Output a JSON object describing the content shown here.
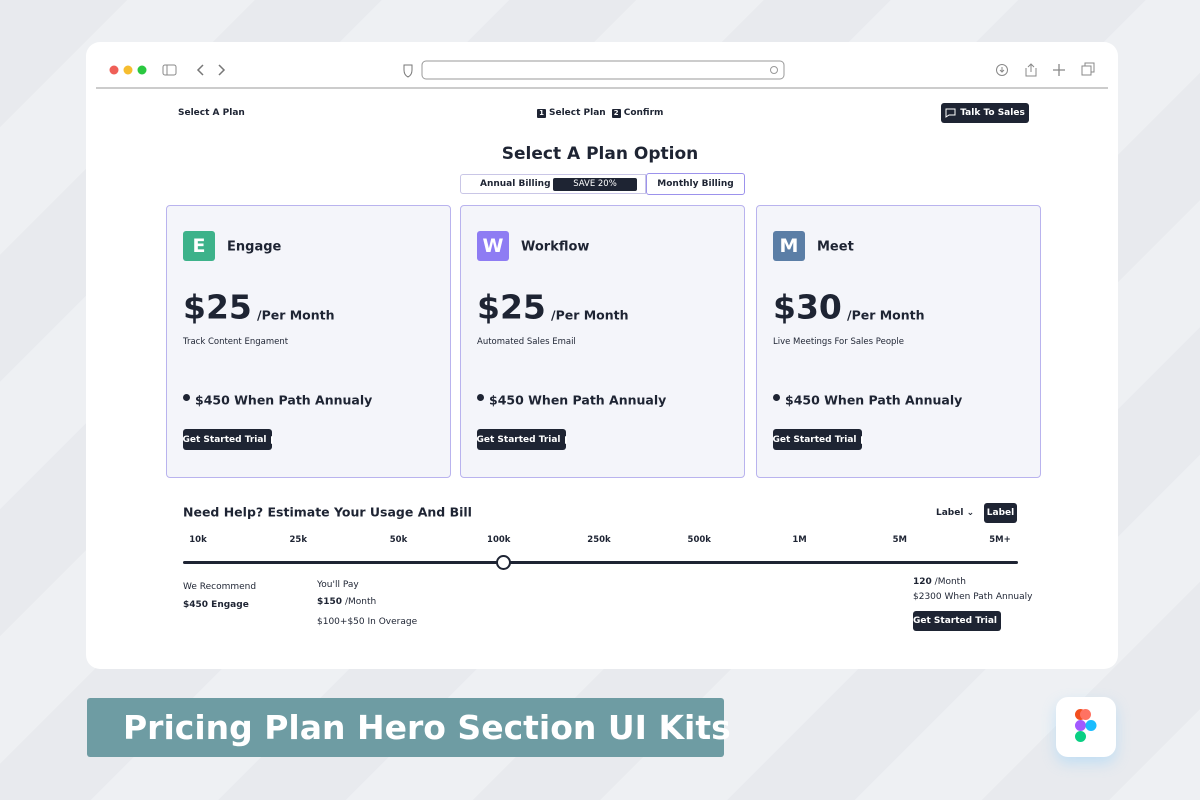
{
  "header": {
    "step_label": "Select A Plan",
    "steps": [
      {
        "num": "1",
        "label": "Select Plan"
      },
      {
        "num": "2",
        "label": "Confirm"
      }
    ],
    "cta": "Talk To Sales"
  },
  "title": "Select A Plan Option",
  "billing": {
    "annual": "Annual Billing",
    "badge": "SAVE 20%",
    "monthly": "Monthly Billing"
  },
  "plans": [
    {
      "letter": "E",
      "name": "Engage",
      "color": "#3db28a",
      "price": "$25",
      "period": "/Per Month",
      "desc": "Track Content Engament",
      "annual": "$450 When Path Annualy",
      "button": "Get Started Trial"
    },
    {
      "letter": "W",
      "name": "Workflow",
      "color": "#8e7cf3",
      "price": "$25",
      "period": "/Per Month",
      "desc": "Automated Sales Email",
      "annual": "$450 When Path Annualy",
      "button": "Get Started Trial"
    },
    {
      "letter": "M",
      "name": "Meet",
      "color": "#5b7ea6",
      "price": "$30",
      "period": "/Per Month",
      "desc": "Live Meetings For Sales People",
      "annual": "$450 When Path Annualy",
      "button": "Get Started Trial"
    }
  ],
  "estimator": {
    "title": "Need Help? Estimate Your Usage And Bill",
    "dropdown": "Label",
    "button": "Label",
    "ticks": [
      "10k",
      "25k",
      "50k",
      "100k",
      "250k",
      "500k",
      "1M",
      "5M",
      "5M+"
    ],
    "selected": "100k",
    "recommend": {
      "label": "We Recommend",
      "value": "$450 Engage"
    },
    "pay": {
      "label": "You'll Pay",
      "amount": "$150",
      "period": "/Month",
      "note": "$100+$50 In Overage"
    },
    "summary": {
      "amount": "120",
      "period": "/Month",
      "annual": "$2300 When Path Annualy",
      "button": "Get Started Trial"
    }
  },
  "banner": "Pricing Plan Hero Section UI Kits"
}
